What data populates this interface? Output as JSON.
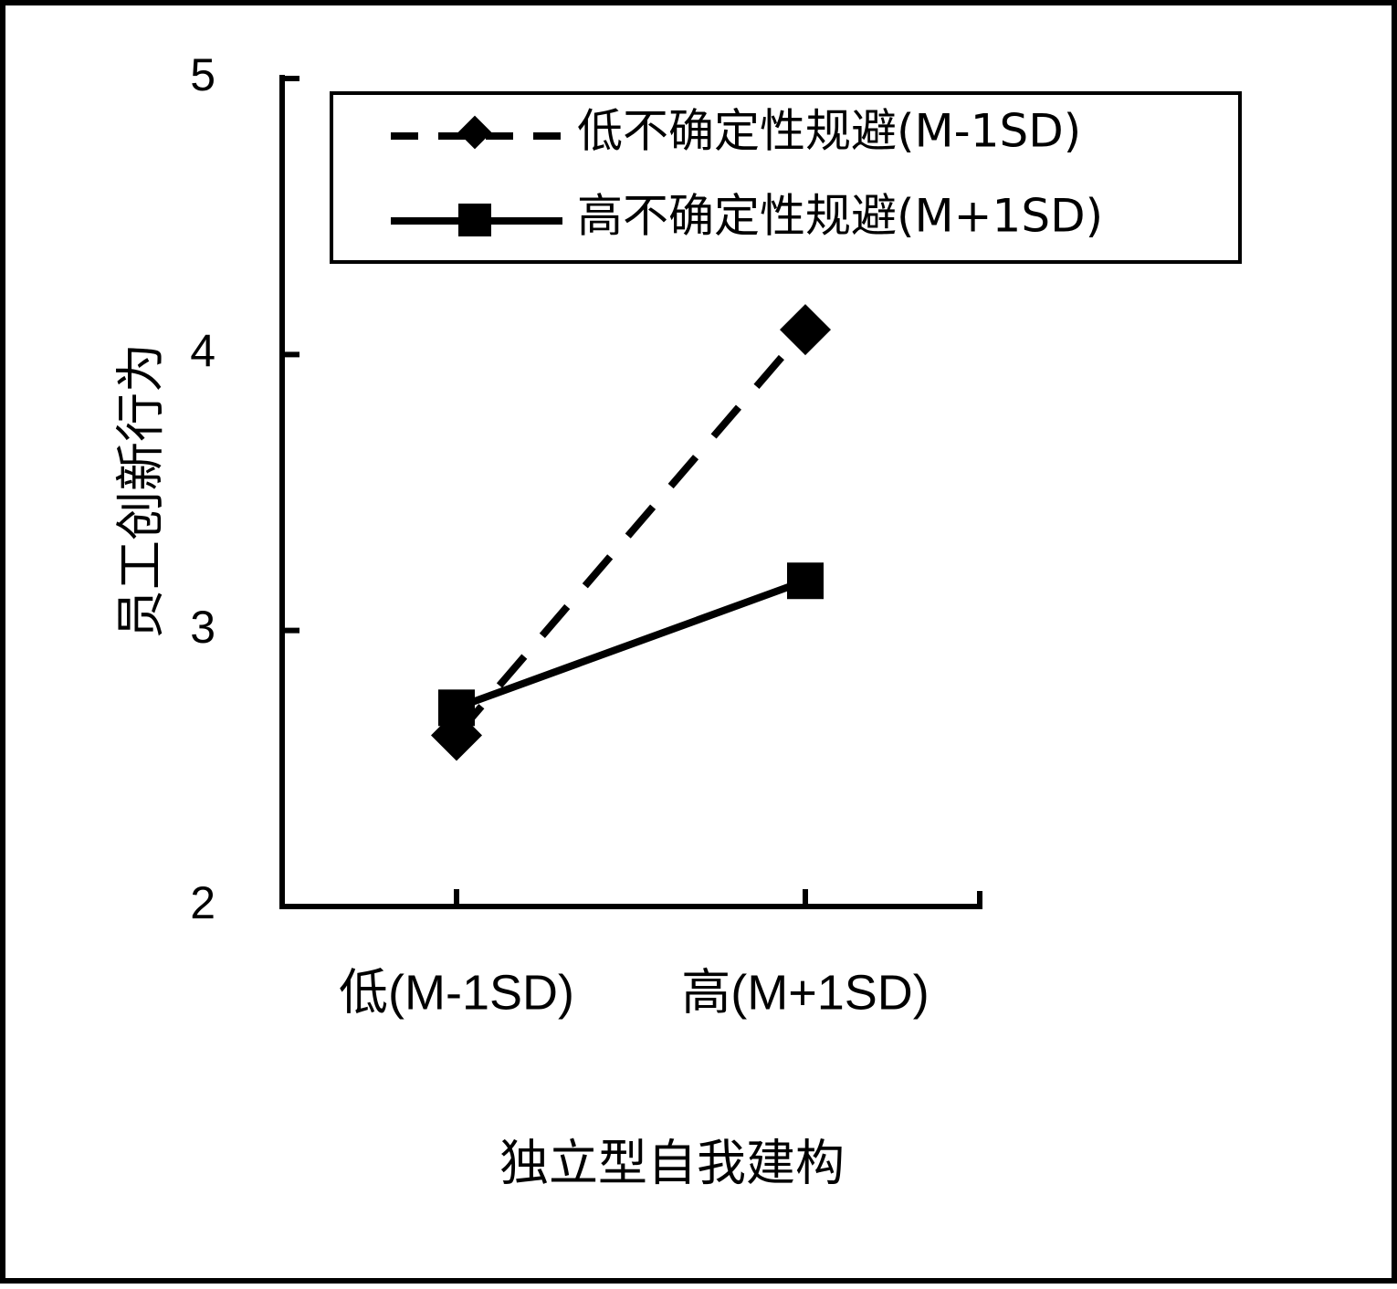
{
  "chart_data": {
    "type": "line",
    "xlabel": "独立型自我建构",
    "ylabel": "员工创新行为",
    "categories": [
      "低(M-1SD)",
      "高(M+1SD)"
    ],
    "ylim": [
      2,
      5
    ],
    "yticks": [
      "2",
      "3",
      "4",
      "5"
    ],
    "grid": false,
    "legend_position": "top",
    "series": [
      {
        "name": "低不确定性规避(M-1SD)",
        "values": [
          2.62,
          4.09
        ],
        "marker": "diamond",
        "line_style": "dashed",
        "color": "#000000"
      },
      {
        "name": "高不确定性规避(M+1SD)",
        "values": [
          2.72,
          3.18
        ],
        "marker": "square",
        "line_style": "solid",
        "color": "#000000"
      }
    ]
  }
}
